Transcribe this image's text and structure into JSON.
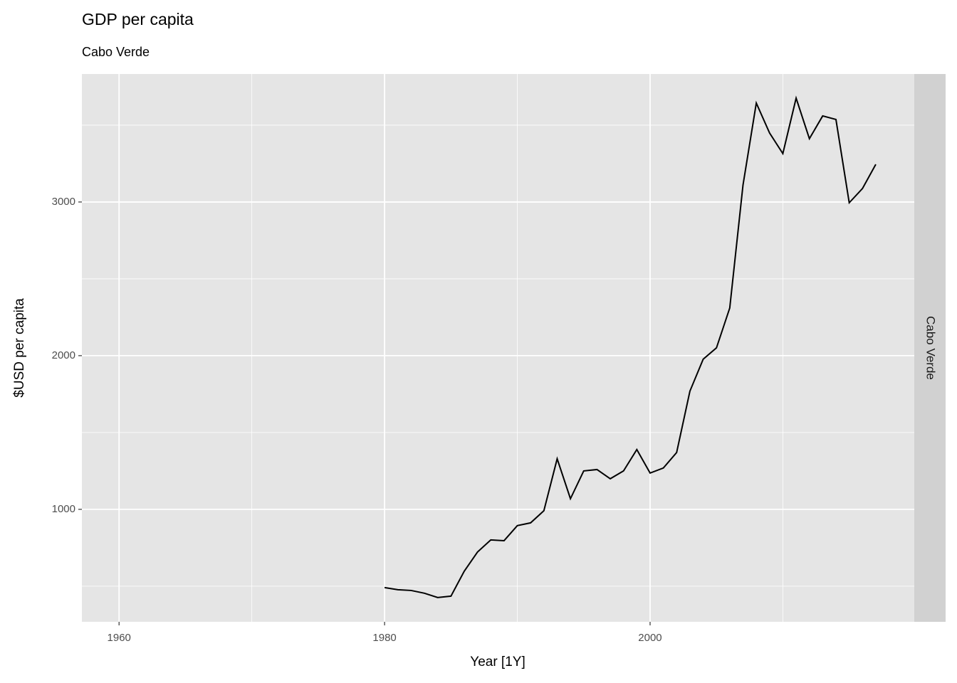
{
  "chart_data": {
    "type": "line",
    "title": "GDP per capita",
    "subtitle": "Cabo Verde",
    "x_label": "Year [1Y]",
    "y_label": "$USD per capita",
    "strip_label": "Cabo Verde",
    "x": [
      1980,
      1981,
      1982,
      1983,
      1984,
      1985,
      1986,
      1987,
      1988,
      1989,
      1990,
      1991,
      1992,
      1993,
      1994,
      1995,
      1996,
      1997,
      1998,
      1999,
      2000,
      2001,
      2002,
      2003,
      2004,
      2005,
      2006,
      2007,
      2008,
      2009,
      2010,
      2011,
      2012,
      2013,
      2014,
      2015,
      2016,
      2017
    ],
    "series": [
      {
        "color": "#000000",
        "values": [
          491,
          477,
          472,
          454,
          426,
          435,
          597,
          722,
          801,
          796,
          894,
          912,
          991,
          1329,
          1069,
          1250,
          1259,
          1199,
          1250,
          1389,
          1236,
          1269,
          1370,
          1769,
          1977,
          2051,
          2310,
          3111,
          3644,
          3449,
          3315,
          3676,
          3412,
          3560,
          3537,
          2995,
          3088,
          3245
        ]
      }
    ],
    "xlim": [
      1957.2,
      2019.9
    ],
    "xticks": [
      1960,
      1980,
      2000
    ],
    "xminor": [
      1970,
      1990,
      2010
    ],
    "ylim": [
      268,
      3833
    ],
    "yticks": [
      1000,
      2000,
      3000
    ],
    "yminor": [
      500,
      1500,
      2500,
      3500
    ],
    "grid": true
  }
}
